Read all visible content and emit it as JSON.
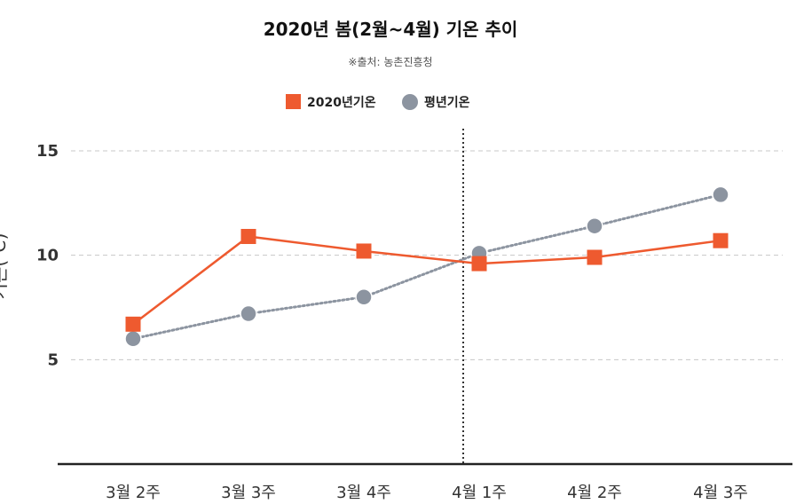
{
  "chart_data": {
    "type": "line",
    "title": "2020년 봄(2월~4월) 기온 추이",
    "subtitle": "※출처: 농촌진흥청",
    "ylabel": "기온(℃)",
    "xlabel": "",
    "categories": [
      "3월 2주",
      "3월 3주",
      "3월 4주",
      "4월 1주",
      "4월 2주",
      "4월 3주"
    ],
    "series": [
      {
        "name": "2020년기온",
        "color": "#ee5a2f",
        "marker": "square",
        "line_style": "solid",
        "values": [
          6.7,
          10.9,
          10.2,
          9.6,
          9.9,
          10.7
        ]
      },
      {
        "name": "평년기온",
        "color": "#8c94a0",
        "marker": "circle",
        "line_style": "dotted",
        "values": [
          6.0,
          7.2,
          8.0,
          10.1,
          11.4,
          12.9
        ]
      }
    ],
    "yticks": [
      5,
      10,
      15
    ],
    "ylim": [
      0,
      16
    ],
    "grid": true,
    "legend_position": "top-center",
    "divider_after_category": "4월 1주"
  }
}
